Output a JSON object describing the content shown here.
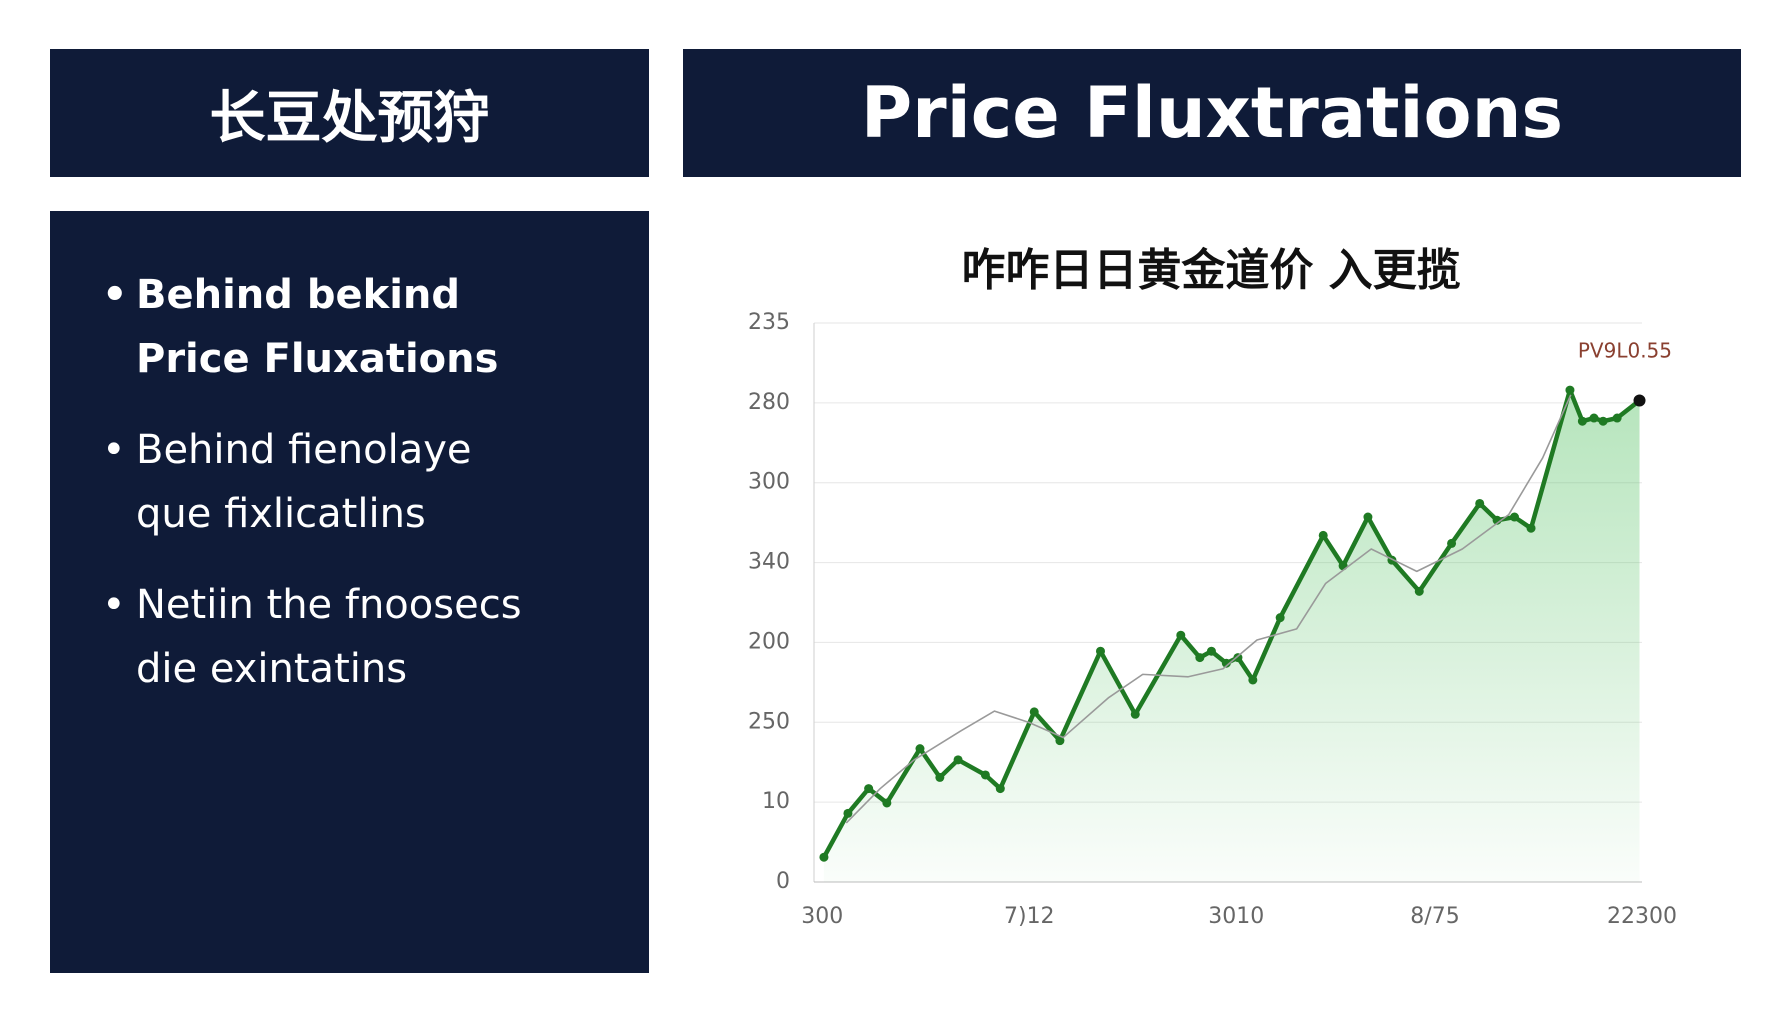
{
  "header": {
    "title": "Price Fluxtrations"
  },
  "left_panel": {
    "title": "长豆处预狩",
    "bullets": [
      [
        "Behind bekind",
        "Price Fluxations"
      ],
      [
        "Behind fienolaye",
        "que fixlicatlins"
      ],
      [
        "Netiin the fnoosecs",
        "die exintatins"
      ]
    ]
  },
  "chart_data": {
    "type": "line",
    "title": "咋咋日日黄金道价 入更揽",
    "annotation": "PV9L0.55",
    "xlim": [
      0,
      100
    ],
    "xticks": [
      {
        "value": 1,
        "label": "300"
      },
      {
        "value": 26,
        "label": "7)12"
      },
      {
        "value": 51,
        "label": "3010"
      },
      {
        "value": 75,
        "label": "8/75"
      },
      {
        "value": 100,
        "label": "22300"
      }
    ],
    "ylim": [
      0,
      7
    ],
    "yticks": [
      0,
      {
        "value": 1,
        "label": "10"
      },
      {
        "value": 2,
        "label": "250"
      },
      {
        "value": 3,
        "label": "200"
      },
      {
        "value": 4,
        "label": "340"
      },
      {
        "value": 5,
        "label": "300"
      },
      {
        "value": 6,
        "label": "280"
      },
      {
        "value": 7,
        "label": "235"
      }
    ],
    "grid": true,
    "series": [
      {
        "color": "#1f7a23",
        "area": true,
        "markers": true,
        "last_marker_color": "#111111",
        "x": [
          1.2,
          4.1,
          6.6,
          8.8,
          12.8,
          15.2,
          17.4,
          20.7,
          22.5,
          26.6,
          29.7,
          34.6,
          38.8,
          44.3,
          46.6,
          48.0,
          49.8,
          51.2,
          53.0,
          56.3,
          61.5,
          63.9,
          66.9,
          69.8,
          73.1,
          77.0,
          80.4,
          82.5,
          84.6,
          86.6,
          91.3,
          92.8,
          94.2,
          95.3,
          97.0,
          99.7
        ],
        "values": [
          0.31,
          0.86,
          1.17,
          0.99,
          1.67,
          1.31,
          1.53,
          1.34,
          1.17,
          2.13,
          1.77,
          2.89,
          2.1,
          3.09,
          2.81,
          2.89,
          2.74,
          2.81,
          2.53,
          3.31,
          4.34,
          3.96,
          4.57,
          4.03,
          3.64,
          4.24,
          4.74,
          4.53,
          4.57,
          4.43,
          6.16,
          5.77,
          5.81,
          5.77,
          5.81,
          6.03
        ]
      },
      {
        "color": "#9a9a9a",
        "area": false,
        "markers": false,
        "x": [
          3.9,
          8.0,
          12.1,
          17.7,
          21.8,
          25.9,
          30.1,
          35.6,
          39.7,
          45.2,
          49.4,
          53.5,
          58.3,
          61.8,
          67.3,
          72.8,
          78.3,
          83.9,
          88.0,
          91.4
        ],
        "values": [
          0.74,
          1.17,
          1.53,
          1.89,
          2.14,
          2.0,
          1.81,
          2.31,
          2.6,
          2.57,
          2.67,
          3.03,
          3.17,
          3.74,
          4.17,
          3.89,
          4.17,
          4.6,
          5.31,
          6.1
        ]
      }
    ]
  }
}
